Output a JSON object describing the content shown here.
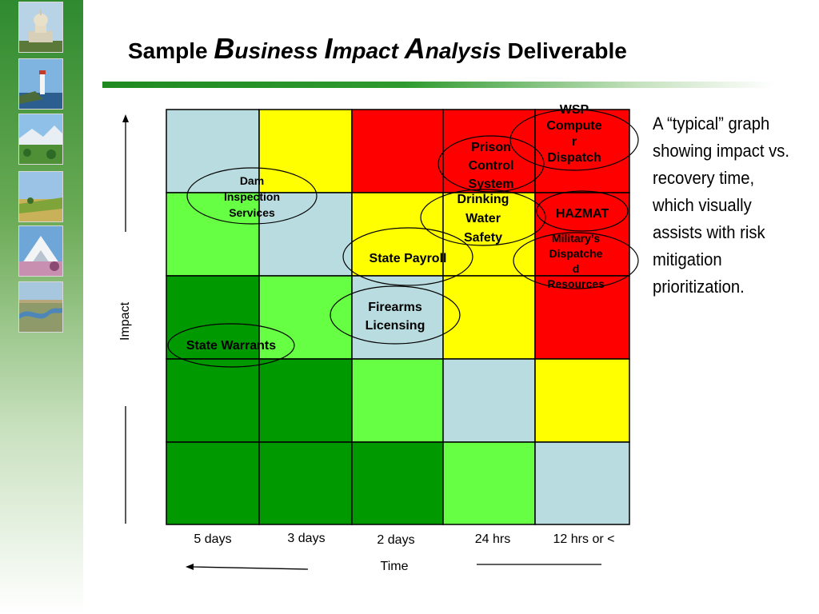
{
  "slide": {
    "title": {
      "w1": "Sample ",
      "b_cap": "B",
      "b_rest": "usiness ",
      "i_cap": "I",
      "i_rest": "mpact ",
      "a_cap": "A",
      "a_rest": "nalysis ",
      "w_last": "Deliverable"
    },
    "note": "A “typical” graph showing impact vs. recovery time, which visually assists with risk mitigation prioritization."
  },
  "sidebar": {
    "thumbnails": [
      "capitol-photo",
      "lighthouse-photo",
      "meadow-photo",
      "wheat-field-photo",
      "mountain-photo",
      "river-valley-photo"
    ]
  },
  "chart_data": {
    "type": "heatmap",
    "xlabel": "Time",
    "ylabel": "Impact",
    "x_categories": [
      "5 days",
      "3 days",
      "2 days",
      "24 hrs",
      "12 hrs or <"
    ],
    "colors": {
      "B": "#b9dce0",
      "Y": "#ffff00",
      "R": "#ff0000",
      "L": "#66ff44",
      "G": "#009900"
    },
    "grid": [
      [
        "B",
        "Y",
        "R",
        "R",
        "R"
      ],
      [
        "L",
        "B",
        "Y",
        "Y",
        "R"
      ],
      [
        "G",
        "L",
        "B",
        "Y",
        "R"
      ],
      [
        "G",
        "G",
        "L",
        "B",
        "Y"
      ],
      [
        "G",
        "G",
        "G",
        "L",
        "B"
      ]
    ],
    "items": [
      {
        "lines": [
          "WSP",
          "Compute",
          "r",
          "Dispatch"
        ]
      },
      {
        "lines": [
          "Prison",
          "Control",
          "System"
        ]
      },
      {
        "lines": [
          "Dam",
          "Inspection",
          "Services"
        ]
      },
      {
        "lines": [
          "Drinking",
          "Water",
          "Safety"
        ]
      },
      {
        "lines": [
          "HAZMAT"
        ]
      },
      {
        "lines": [
          "Military’s",
          "Dispatche",
          "d",
          "Resources"
        ]
      },
      {
        "lines": [
          "State Payroll"
        ]
      },
      {
        "lines": [
          "Firearms",
          "Licensing"
        ]
      },
      {
        "lines": [
          "State Warrants"
        ]
      }
    ]
  }
}
